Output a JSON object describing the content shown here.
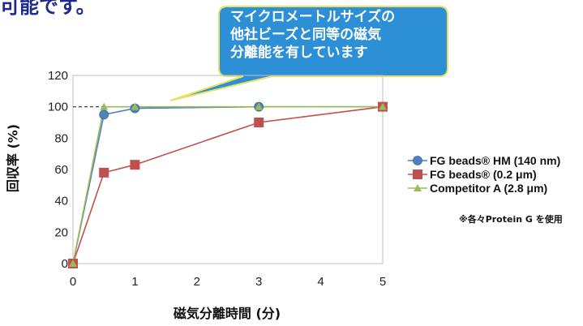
{
  "header": {
    "top_text": "可能です。"
  },
  "callout": {
    "lines": [
      "マイクロメートルサイズの",
      "他社ビーズと同等の磁気",
      "分離能を有しています"
    ],
    "fill": "#2d8fd6",
    "border": "#e8e060"
  },
  "note": "※各々Protein G を使用",
  "chart_data": {
    "type": "line",
    "xlabel": "磁気分離時間 (分)",
    "ylabel": "回収率 (%)",
    "xlim": [
      0,
      5
    ],
    "ylim": [
      0,
      120
    ],
    "x_ticks": [
      0,
      1,
      2,
      3,
      4,
      5
    ],
    "y_ticks": [
      0,
      20,
      40,
      60,
      80,
      100,
      120
    ],
    "reference_line": {
      "y": 100,
      "style": "dashed",
      "color": "#223344"
    },
    "grid": false,
    "legend_position": "right",
    "series": [
      {
        "name": "FG beads® HM (140 nm)",
        "marker": "circle",
        "color": "#4f81bd",
        "x": [
          0,
          0.5,
          1,
          3,
          5
        ],
        "y": [
          0,
          95,
          99,
          100,
          100
        ]
      },
      {
        "name": "FG beads® (0.2 μm)",
        "marker": "square",
        "color": "#c0504d",
        "x": [
          0,
          0.5,
          1,
          3,
          5
        ],
        "y": [
          0,
          58,
          63,
          90,
          100
        ]
      },
      {
        "name": "Competitor A (2.8 μm)",
        "marker": "triangle",
        "color": "#9bbb59",
        "x": [
          0,
          0.5,
          1,
          3,
          5
        ],
        "y": [
          0,
          100,
          100,
          100,
          100
        ]
      }
    ]
  }
}
